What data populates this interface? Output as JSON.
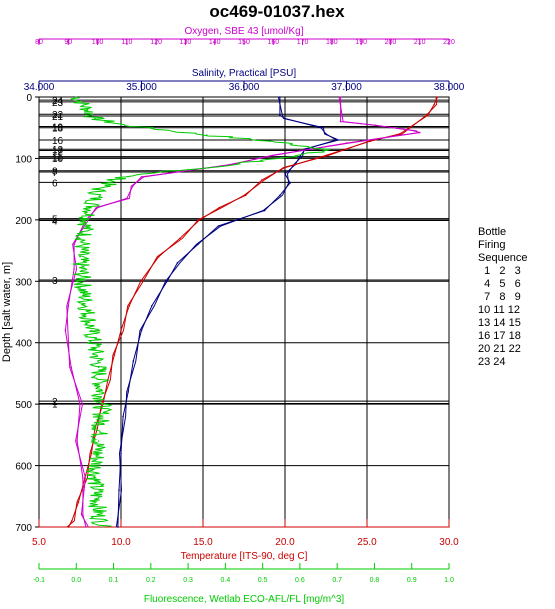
{
  "chart_data": {
    "type": "line",
    "title": "oc469-01037.hex",
    "y_axis": {
      "label": "Depth [salt water, m]",
      "range": [
        0,
        700
      ],
      "ticks": [
        0,
        100,
        200,
        300,
        400,
        500,
        600,
        700
      ],
      "inverted": true
    },
    "x_axes": [
      {
        "id": "oxygen",
        "label": "Oxygen, SBE 43 [umol/Kg]",
        "position": "top-1",
        "color": "#cc00cc",
        "range": [
          80,
          220
        ],
        "ticks": [
          "80",
          "90",
          "100",
          "110",
          "120",
          "130",
          "140",
          "150",
          "160",
          "170",
          "180",
          "190",
          "200",
          "210",
          "220"
        ]
      },
      {
        "id": "salinity",
        "label": "Salinity, Practical [PSU]",
        "position": "top-2",
        "color": "#000080",
        "range": [
          34.0,
          38.0
        ],
        "ticks": [
          "34.000",
          "35.000",
          "36.000",
          "37.000",
          "38.000"
        ]
      },
      {
        "id": "temperature",
        "label": "Temperature [ITS-90, deg C]",
        "position": "bottom-1",
        "color": "#cc0000",
        "range": [
          5.0,
          30.0
        ],
        "ticks": [
          "5.0",
          "10.0",
          "15.0",
          "20.0",
          "25.0",
          "30.0"
        ]
      },
      {
        "id": "fluorescence",
        "label": "Fluorescence, Wetlab ECO-AFL/FL [mg/m^3]",
        "position": "bottom-2",
        "color": "#00cc00",
        "range": [
          -0.1,
          1.0
        ],
        "ticks": [
          "-0.1",
          "0.0",
          "0.1",
          "0.2",
          "0.3",
          "0.4",
          "0.5",
          "0.6",
          "0.7",
          "0.8",
          "0.9",
          "1.0"
        ]
      }
    ],
    "series": [
      {
        "axis": "salinity",
        "color": "#000080",
        "points": [
          [
            36.35,
            0
          ],
          [
            36.35,
            30
          ],
          [
            36.4,
            35
          ],
          [
            36.75,
            50
          ],
          [
            36.8,
            60
          ],
          [
            36.9,
            70
          ],
          [
            36.6,
            85
          ],
          [
            36.55,
            95
          ],
          [
            36.5,
            110
          ],
          [
            36.4,
            125
          ],
          [
            36.45,
            140
          ],
          [
            36.35,
            160
          ],
          [
            36.2,
            185
          ],
          [
            35.75,
            210
          ],
          [
            35.55,
            240
          ],
          [
            35.35,
            270
          ],
          [
            35.25,
            300
          ],
          [
            35.1,
            340
          ],
          [
            35.0,
            380
          ],
          [
            34.92,
            430
          ],
          [
            34.87,
            480
          ],
          [
            34.82,
            520
          ],
          [
            34.8,
            580
          ],
          [
            34.78,
            640
          ],
          [
            34.77,
            700
          ]
        ]
      },
      {
        "axis": "temperature",
        "color": "#cc0000",
        "points": [
          [
            29.3,
            0
          ],
          [
            29.1,
            12
          ],
          [
            28.7,
            30
          ],
          [
            27.0,
            60
          ],
          [
            25.2,
            72
          ],
          [
            22.5,
            95
          ],
          [
            20.0,
            115
          ],
          [
            18.6,
            135
          ],
          [
            17.6,
            160
          ],
          [
            16.0,
            180
          ],
          [
            14.8,
            200
          ],
          [
            13.6,
            230
          ],
          [
            12.3,
            260
          ],
          [
            11.2,
            300
          ],
          [
            10.5,
            340
          ],
          [
            10.0,
            380
          ],
          [
            9.6,
            420
          ],
          [
            9.2,
            460
          ],
          [
            8.9,
            500
          ],
          [
            8.4,
            540
          ],
          [
            8.2,
            580
          ],
          [
            7.8,
            620
          ],
          [
            7.4,
            660
          ],
          [
            7.0,
            690
          ],
          [
            6.8,
            700
          ]
        ]
      },
      {
        "axis": "oxygen",
        "color": "#cc00cc",
        "points": [
          [
            183,
            0
          ],
          [
            183,
            40
          ],
          [
            195,
            46
          ],
          [
            208,
            55
          ],
          [
            210,
            58
          ],
          [
            185,
            75
          ],
          [
            160,
            95
          ],
          [
            145,
            110
          ],
          [
            128,
            122
          ],
          [
            115,
            130
          ],
          [
            112,
            145
          ],
          [
            110,
            165
          ],
          [
            100,
            180
          ],
          [
            96,
            200
          ],
          [
            92,
            240
          ],
          [
            92,
            280
          ],
          [
            90,
            340
          ],
          [
            89,
            380
          ],
          [
            91,
            440
          ],
          [
            94,
            500
          ],
          [
            93,
            560
          ],
          [
            95,
            620
          ],
          [
            95,
            680
          ],
          [
            96,
            700
          ]
        ]
      },
      {
        "axis": "fluorescence",
        "color": "#00cc00",
        "points": [
          [
            0.0,
            0
          ],
          [
            0.03,
            20
          ],
          [
            0.05,
            35
          ],
          [
            0.12,
            45
          ],
          [
            0.35,
            62
          ],
          [
            0.52,
            72
          ],
          [
            0.68,
            85
          ],
          [
            0.55,
            100
          ],
          [
            0.3,
            118
          ],
          [
            0.12,
            130
          ],
          [
            0.06,
            150
          ],
          [
            0.03,
            200
          ],
          [
            0.01,
            260
          ],
          [
            0.02,
            320
          ],
          [
            0.04,
            380
          ],
          [
            0.06,
            440
          ],
          [
            0.07,
            500
          ],
          [
            0.06,
            560
          ],
          [
            0.05,
            620
          ],
          [
            0.06,
            680
          ],
          [
            0.07,
            700
          ]
        ]
      }
    ],
    "bottle_lines": [
      {
        "depth": 5,
        "label": "24"
      },
      {
        "depth": 8,
        "label": "23"
      },
      {
        "depth": 28,
        "label": "22"
      },
      {
        "depth": 31,
        "label": "21"
      },
      {
        "depth": 48,
        "label": "19"
      },
      {
        "depth": 50,
        "label": "18"
      },
      {
        "depth": 70,
        "label": "16"
      },
      {
        "depth": 85,
        "label": "13"
      },
      {
        "depth": 87,
        "label": "12"
      },
      {
        "depth": 97,
        "label": "11"
      },
      {
        "depth": 99,
        "label": "10"
      },
      {
        "depth": 120,
        "label": "8"
      },
      {
        "depth": 122,
        "label": "7"
      },
      {
        "depth": 139,
        "label": "6"
      },
      {
        "depth": 198,
        "label": "5"
      },
      {
        "depth": 201,
        "label": "4"
      },
      {
        "depth": 298,
        "label": "3"
      },
      {
        "depth": 495,
        "label": "2"
      },
      {
        "depth": 499,
        "label": "1"
      }
    ],
    "legend": {
      "title": [
        "Bottle",
        "Firing",
        "Sequence"
      ],
      "rows": [
        "  1   2   3",
        "  4   5   6",
        "  7   8   9",
        "10 11 12",
        "13 14 15",
        "16 17 18",
        "20 21 22",
        "23 24"
      ]
    }
  }
}
